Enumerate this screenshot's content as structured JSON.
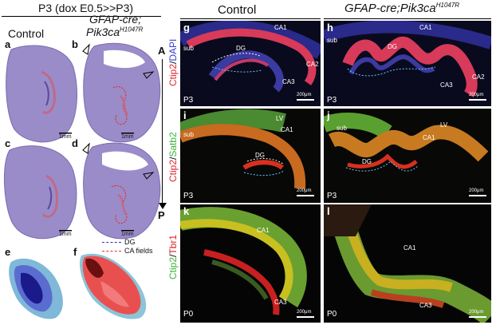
{
  "header": {
    "title": "P3 (dox E0.5>>P3)",
    "col_left_control": "Control",
    "col_left_mutant_line1": "GFAP-cre;",
    "col_left_mutant_line2_base": "Pik3ca",
    "col_left_mutant_line2_sup": "H1047R",
    "col_right_control": "Control",
    "col_right_mutant_base": "GFAP-cre;Pik3ca",
    "col_right_mutant_sup": "H1047R"
  },
  "left_panels": {
    "a": "a",
    "b": "b",
    "c": "c",
    "d": "d",
    "e": "e",
    "f": "f",
    "scale": "1mm",
    "axis_top": "A",
    "axis_bottom": "P",
    "legend_dg": "DG",
    "legend_ca": "CA fields"
  },
  "right_panels": {
    "g": {
      "letter": "g",
      "age": "P3",
      "labels": [
        "sub",
        "DG",
        "CA1",
        "CA2",
        "CA3"
      ],
      "scale": "200μm"
    },
    "h": {
      "letter": "h",
      "age": "P3",
      "labels": [
        "sub",
        "DG",
        "CA1",
        "CA2",
        "CA3"
      ],
      "scale": "200μm"
    },
    "i": {
      "letter": "i",
      "age": "P3",
      "labels": [
        "sub",
        "LV",
        "CA1",
        "DG"
      ],
      "scale": "200μm"
    },
    "j": {
      "letter": "j",
      "age": "P3",
      "labels": [
        "sub",
        "LV",
        "CA1",
        "DG"
      ],
      "scale": "200μm"
    },
    "k": {
      "letter": "k",
      "age": "P0",
      "labels": [
        "CA1",
        "CA3"
      ],
      "scale": "200μm"
    },
    "l": {
      "letter": "l",
      "age": "P0",
      "labels": [
        "CA1",
        "CA3"
      ],
      "scale": "200μm"
    }
  },
  "row_labels": {
    "row1_a": "Ctip2",
    "row1_sep": "/",
    "row1_b": "DAPI",
    "row2_a": "Ctip2",
    "row2_sep": "/",
    "row2_b": "Satb2",
    "row3_a": "Ctip2",
    "row3_sep": "/",
    "row3_b": "Tbr1"
  },
  "colors": {
    "ctip2_red": "#e0282c",
    "dapi_blue": "#3b3bd8",
    "satb2_green": "#3cb43c",
    "tbr1_red": "#d82020",
    "dg_line": "#3030c0",
    "ca_line": "#e03030",
    "nissl": "#9a8cc8"
  }
}
